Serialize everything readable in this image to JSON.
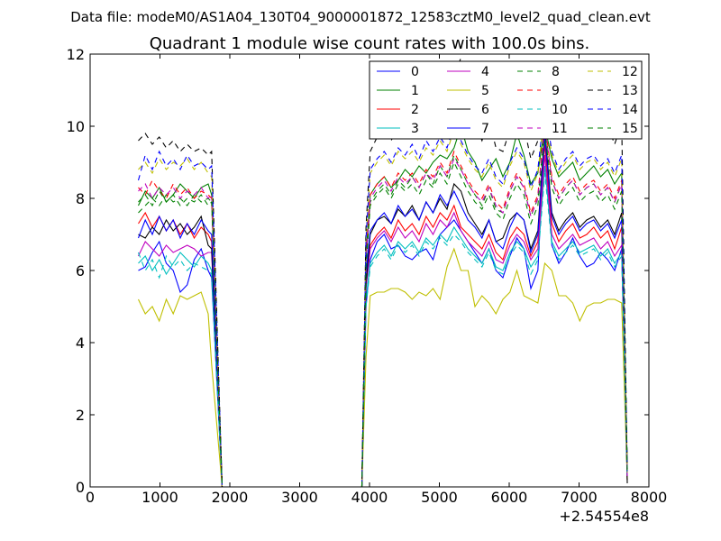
{
  "chart_data": {
    "type": "line",
    "suptitle": "Data file: modeM0/AS1A04_130T04_9000001872_12583cztM0_level2_quad_clean.evt",
    "title": "Quadrant 1 module wise count rates with 100.0s bins.",
    "xlabel": "",
    "ylabel": "",
    "x_offset_label": "+2.54554e8",
    "xlim": [
      0,
      8000
    ],
    "ylim": [
      0,
      12
    ],
    "xticks": [
      0,
      1000,
      2000,
      3000,
      4000,
      5000,
      6000,
      7000,
      8000
    ],
    "yticks": [
      0,
      2,
      4,
      6,
      8,
      10,
      12
    ],
    "grid": false,
    "legend_position": "top-right",
    "legend_columns": 4,
    "x": [
      690,
      790,
      890,
      990,
      1090,
      1190,
      1290,
      1390,
      1490,
      1590,
      1690,
      1740,
      1890,
      3890,
      3950,
      4010,
      4110,
      4210,
      4310,
      4410,
      4510,
      4610,
      4710,
      4810,
      4910,
      5010,
      5110,
      5210,
      5310,
      5410,
      5510,
      5610,
      5710,
      5810,
      5910,
      6010,
      6110,
      6210,
      6310,
      6410,
      6510,
      6610,
      6710,
      6810,
      6910,
      7010,
      7110,
      7210,
      7310,
      7410,
      7510,
      7610,
      7690
    ],
    "series": [
      {
        "name": "0",
        "color": "#0000ff",
        "style": "solid",
        "values": [
          6.0,
          6.1,
          6.5,
          6.8,
          6.2,
          6.0,
          5.4,
          5.6,
          6.3,
          6.6,
          6.0,
          5.8,
          0.0,
          0.0,
          5.0,
          6.3,
          6.8,
          7.0,
          6.6,
          6.7,
          6.4,
          6.3,
          6.5,
          6.6,
          6.3,
          7.0,
          7.2,
          7.4,
          7.1,
          6.8,
          6.5,
          6.2,
          6.6,
          6.0,
          5.8,
          6.4,
          6.9,
          6.6,
          5.5,
          6.0,
          9.8,
          6.7,
          6.2,
          6.5,
          6.9,
          6.4,
          6.1,
          6.2,
          6.5,
          6.3,
          6.0,
          6.6,
          0.3
        ]
      },
      {
        "name": "1",
        "color": "#008000",
        "style": "solid",
        "values": [
          7.8,
          8.2,
          8.0,
          8.3,
          7.9,
          8.1,
          8.4,
          8.2,
          8.0,
          8.3,
          8.4,
          8.1,
          0.0,
          0.0,
          6.4,
          8.1,
          8.4,
          8.6,
          8.3,
          8.5,
          8.8,
          8.6,
          8.9,
          8.7,
          9.0,
          9.2,
          9.1,
          9.4,
          10.0,
          9.3,
          9.0,
          8.5,
          8.8,
          9.1,
          8.6,
          9.0,
          9.8,
          9.2,
          8.4,
          8.7,
          10.0,
          9.1,
          8.6,
          8.8,
          9.0,
          8.5,
          8.7,
          8.9,
          8.6,
          8.8,
          8.4,
          8.7,
          0.5
        ]
      },
      {
        "name": "2",
        "color": "#ff0000",
        "style": "solid",
        "values": [
          7.3,
          7.6,
          7.2,
          7.5,
          7.1,
          7.4,
          7.0,
          7.3,
          6.9,
          7.2,
          7.0,
          6.8,
          0.0,
          0.0,
          5.6,
          6.7,
          7.0,
          7.2,
          6.9,
          7.4,
          7.1,
          7.3,
          7.0,
          7.5,
          7.2,
          7.6,
          7.4,
          7.8,
          7.2,
          7.0,
          6.8,
          6.6,
          7.0,
          6.5,
          6.3,
          6.9,
          7.2,
          7.0,
          6.4,
          6.8,
          9.5,
          7.3,
          6.8,
          7.1,
          7.3,
          6.9,
          7.0,
          7.2,
          6.9,
          7.1,
          6.6,
          7.2,
          0.2
        ]
      },
      {
        "name": "3",
        "color": "#00bfbf",
        "style": "solid",
        "values": [
          6.2,
          6.4,
          6.0,
          6.3,
          5.9,
          6.2,
          6.5,
          6.3,
          6.1,
          6.4,
          6.2,
          6.0,
          0.0,
          0.0,
          5.2,
          6.2,
          6.5,
          6.7,
          6.4,
          6.8,
          6.6,
          6.8,
          6.5,
          6.9,
          6.7,
          7.0,
          6.8,
          7.2,
          6.9,
          6.6,
          6.4,
          6.2,
          6.6,
          6.1,
          6.0,
          6.5,
          6.8,
          6.6,
          6.1,
          6.4,
          8.9,
          6.8,
          6.4,
          6.6,
          6.8,
          6.5,
          6.6,
          6.7,
          6.4,
          6.6,
          6.2,
          6.5,
          0.2
        ]
      },
      {
        "name": "4",
        "color": "#bf00bf",
        "style": "solid",
        "values": [
          6.4,
          6.8,
          6.6,
          6.4,
          6.7,
          6.5,
          6.6,
          6.7,
          6.6,
          6.4,
          6.5,
          6.5,
          0.0,
          0.0,
          5.5,
          6.6,
          6.9,
          7.1,
          6.8,
          7.2,
          6.9,
          7.1,
          6.8,
          7.3,
          7.0,
          7.4,
          7.2,
          7.6,
          7.1,
          6.8,
          6.6,
          6.4,
          6.8,
          6.3,
          6.2,
          6.7,
          7.0,
          6.8,
          6.3,
          6.6,
          9.2,
          7.0,
          6.6,
          6.8,
          7.0,
          6.7,
          6.8,
          6.9,
          6.6,
          6.8,
          6.4,
          6.7,
          0.2
        ]
      },
      {
        "name": "5",
        "color": "#bfbf00",
        "style": "solid",
        "values": [
          5.2,
          4.8,
          5.0,
          4.6,
          5.2,
          4.8,
          5.3,
          5.2,
          5.3,
          5.4,
          4.8,
          3.4,
          0.0,
          0.0,
          3.6,
          5.3,
          5.4,
          5.4,
          5.5,
          5.5,
          5.4,
          5.2,
          5.4,
          5.3,
          5.5,
          5.2,
          6.1,
          6.6,
          6.0,
          6.0,
          5.0,
          5.3,
          5.1,
          4.8,
          5.2,
          5.4,
          6.0,
          5.3,
          5.2,
          5.1,
          6.2,
          6.0,
          5.3,
          5.3,
          5.1,
          4.6,
          5.0,
          5.1,
          5.1,
          5.2,
          5.2,
          5.1,
          0.2
        ]
      },
      {
        "name": "6",
        "color": "#000000",
        "style": "solid",
        "values": [
          7.0,
          6.9,
          7.2,
          7.0,
          7.4,
          7.1,
          7.3,
          7.0,
          7.2,
          7.5,
          6.7,
          6.6,
          0.0,
          0.0,
          5.6,
          7.0,
          7.4,
          7.5,
          7.3,
          7.7,
          7.5,
          7.8,
          7.4,
          7.9,
          7.6,
          8.0,
          7.7,
          8.4,
          8.2,
          7.6,
          7.3,
          7.0,
          7.4,
          6.8,
          6.9,
          7.4,
          7.6,
          7.4,
          6.6,
          7.1,
          9.9,
          7.6,
          7.1,
          7.4,
          7.6,
          7.2,
          7.4,
          7.5,
          7.2,
          7.4,
          7.0,
          7.6,
          0.1
        ]
      },
      {
        "name": "7",
        "color": "#0000ff",
        "style": "solid",
        "values": [
          6.9,
          7.4,
          7.0,
          7.5,
          7.1,
          7.4,
          6.9,
          7.3,
          7.0,
          7.4,
          7.1,
          7.0,
          0.0,
          0.0,
          5.9,
          7.1,
          7.4,
          7.6,
          7.3,
          7.8,
          7.5,
          7.7,
          7.4,
          7.9,
          7.6,
          8.1,
          7.8,
          8.2,
          7.8,
          7.4,
          7.2,
          6.9,
          7.4,
          6.8,
          6.6,
          7.2,
          7.6,
          7.4,
          6.5,
          7.0,
          9.7,
          7.5,
          7.0,
          7.3,
          7.5,
          7.1,
          7.3,
          7.4,
          7.1,
          7.3,
          6.9,
          7.4,
          0.3
        ]
      },
      {
        "name": "8",
        "color": "#008000",
        "style": "dashed",
        "values": [
          7.6,
          7.8,
          8.0,
          7.8,
          8.1,
          7.9,
          8.0,
          7.8,
          8.1,
          7.9,
          8.0,
          7.9,
          0.0,
          0.0,
          6.2,
          7.9,
          8.2,
          8.4,
          8.1,
          8.5,
          8.3,
          8.6,
          8.3,
          8.7,
          8.4,
          8.9,
          8.6,
          9.2,
          8.8,
          8.4,
          8.1,
          7.8,
          8.3,
          7.7,
          7.6,
          8.2,
          8.6,
          8.3,
          7.5,
          8.0,
          10.0,
          8.5,
          8.0,
          8.3,
          8.5,
          8.1,
          8.3,
          8.4,
          8.1,
          8.3,
          7.9,
          8.4,
          0.4
        ]
      },
      {
        "name": "9",
        "color": "#ff0000",
        "style": "dashed",
        "values": [
          8.3,
          8.1,
          8.5,
          8.2,
          8.0,
          8.4,
          8.1,
          8.3,
          8.0,
          8.2,
          8.1,
          8.0,
          0.0,
          0.0,
          6.4,
          8.1,
          8.4,
          8.6,
          8.3,
          8.7,
          8.5,
          8.7,
          8.4,
          8.8,
          8.6,
          9.0,
          8.7,
          9.3,
          8.9,
          8.5,
          8.2,
          8.0,
          8.4,
          7.9,
          7.7,
          8.3,
          8.7,
          8.4,
          7.6,
          8.1,
          10.1,
          8.6,
          8.1,
          8.4,
          8.6,
          8.2,
          8.4,
          8.5,
          8.2,
          8.4,
          8.0,
          8.5,
          0.3
        ]
      },
      {
        "name": "10",
        "color": "#00bfbf",
        "style": "dashed",
        "values": [
          6.5,
          6.0,
          6.3,
          5.8,
          6.4,
          6.1,
          6.3,
          6.0,
          6.2,
          6.1,
          6.0,
          5.9,
          0.0,
          0.0,
          5.0,
          6.1,
          6.4,
          6.6,
          6.3,
          6.7,
          6.5,
          6.7,
          6.4,
          6.8,
          6.6,
          6.9,
          6.7,
          7.0,
          6.8,
          6.5,
          6.3,
          6.1,
          6.5,
          6.0,
          5.9,
          6.4,
          6.7,
          6.5,
          5.9,
          6.3,
          8.7,
          6.7,
          6.3,
          6.5,
          6.7,
          6.4,
          6.5,
          6.6,
          6.3,
          6.5,
          6.1,
          6.4,
          0.2
        ]
      },
      {
        "name": "11",
        "color": "#bf00bf",
        "style": "dashed",
        "values": [
          8.2,
          8.4,
          8.0,
          8.3,
          8.1,
          8.3,
          8.0,
          8.2,
          8.1,
          8.3,
          8.0,
          8.1,
          0.0,
          0.0,
          6.3,
          8.0,
          8.3,
          8.5,
          8.2,
          8.6,
          8.4,
          8.6,
          8.3,
          8.7,
          8.5,
          8.9,
          8.6,
          9.1,
          8.8,
          8.4,
          8.1,
          7.9,
          8.3,
          7.8,
          7.6,
          8.2,
          8.6,
          8.3,
          7.5,
          8.0,
          10.0,
          8.5,
          8.0,
          8.3,
          8.5,
          8.1,
          8.3,
          8.4,
          8.1,
          8.3,
          7.9,
          8.4,
          0.3
        ]
      },
      {
        "name": "12",
        "color": "#bfbf00",
        "style": "dashed",
        "values": [
          8.8,
          9.0,
          8.7,
          9.1,
          8.8,
          9.0,
          8.9,
          9.1,
          8.8,
          9.0,
          8.7,
          8.6,
          0.0,
          0.0,
          6.8,
          8.7,
          9.0,
          9.2,
          8.9,
          9.3,
          9.1,
          9.3,
          9.0,
          9.4,
          9.2,
          9.6,
          9.3,
          9.9,
          9.5,
          9.1,
          8.8,
          8.6,
          9.0,
          8.5,
          8.3,
          8.9,
          9.3,
          9.0,
          8.2,
          8.7,
          10.5,
          9.2,
          8.7,
          9.0,
          9.2,
          8.8,
          9.0,
          9.1,
          8.8,
          9.0,
          8.6,
          9.1,
          0.4
        ]
      },
      {
        "name": "13",
        "color": "#000000",
        "style": "dashed",
        "values": [
          9.6,
          9.8,
          9.5,
          9.7,
          9.4,
          9.6,
          9.3,
          9.5,
          9.3,
          9.4,
          9.2,
          9.3,
          0.0,
          0.0,
          7.2,
          9.3,
          9.7,
          9.9,
          9.6,
          10.0,
          9.8,
          10.1,
          9.8,
          10.3,
          10.0,
          10.8,
          10.4,
          11.4,
          11.9,
          10.6,
          10.1,
          9.6,
          10.2,
          9.4,
          9.3,
          9.9,
          10.4,
          10.0,
          9.1,
          9.6,
          10.9,
          10.2,
          9.7,
          10.0,
          10.2,
          9.8,
          10.0,
          10.1,
          9.8,
          10.0,
          9.5,
          10.1,
          0.5
        ]
      },
      {
        "name": "14",
        "color": "#0000ff",
        "style": "dashed",
        "values": [
          8.5,
          9.2,
          8.8,
          9.3,
          8.9,
          9.1,
          8.8,
          9.2,
          8.9,
          9.0,
          8.8,
          8.9,
          0.0,
          0.0,
          6.9,
          8.8,
          9.1,
          9.3,
          9.0,
          9.4,
          9.2,
          9.5,
          9.1,
          9.6,
          9.3,
          9.7,
          9.4,
          10.0,
          9.6,
          9.2,
          8.9,
          8.7,
          9.1,
          8.6,
          8.4,
          9.0,
          9.4,
          9.1,
          8.3,
          8.8,
          10.6,
          9.3,
          8.8,
          9.1,
          9.3,
          8.9,
          9.1,
          9.2,
          8.9,
          9.1,
          8.7,
          9.2,
          0.4
        ]
      },
      {
        "name": "15",
        "color": "#008000",
        "style": "dashed",
        "values": [
          7.9,
          8.1,
          7.8,
          8.2,
          7.9,
          8.1,
          7.8,
          8.0,
          7.9,
          8.1,
          7.8,
          7.9,
          0.0,
          0.0,
          6.1,
          7.8,
          8.1,
          8.3,
          8.0,
          8.4,
          8.2,
          8.4,
          8.1,
          8.5,
          8.3,
          8.7,
          8.4,
          9.0,
          8.6,
          8.2,
          7.9,
          7.7,
          8.1,
          7.6,
          7.4,
          8.0,
          8.4,
          8.1,
          7.3,
          7.8,
          9.8,
          8.3,
          7.8,
          8.1,
          8.3,
          7.9,
          8.1,
          8.2,
          7.9,
          8.1,
          7.7,
          8.2,
          0.4
        ]
      }
    ]
  }
}
